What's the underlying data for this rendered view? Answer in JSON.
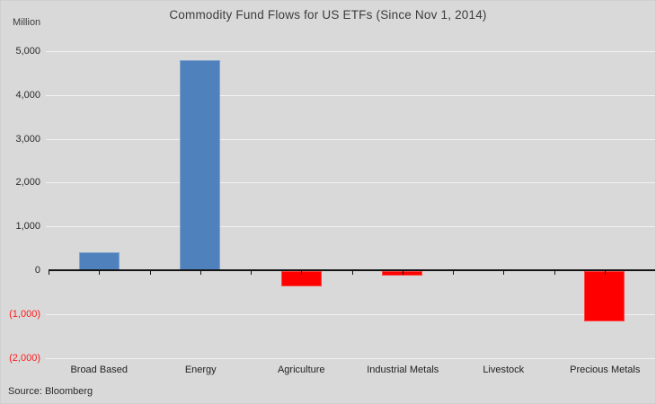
{
  "title": "Commodity Fund Flows for US ETFs (Since Nov 1, 2014)",
  "unit_label": "Million",
  "source_label": "Source: Bloomberg",
  "colors": {
    "background": "#d9d9d9",
    "positive_bar": "#4f81bd",
    "negative_bar": "#ff0000",
    "negative_tick_text": "#ff1a1a",
    "gridline": "#f2f2f2",
    "axis": "#141414",
    "text": "#2b2b2b"
  },
  "chart_data": {
    "type": "bar",
    "title": "Commodity Fund Flows for US ETFs (Since Nov 1, 2014)",
    "xlabel": "",
    "ylabel": "Million",
    "categories": [
      "Broad Based",
      "Energy",
      "Agriculture",
      "Industrial Metals",
      "Livestock",
      "Precious Metals"
    ],
    "values": [
      400,
      4800,
      -350,
      -100,
      0,
      -1150
    ],
    "ylim": [
      -2000,
      5000
    ],
    "ytick_interval": 1000,
    "yticks": [
      5000,
      4000,
      3000,
      2000,
      1000,
      0,
      -1000,
      -2000
    ],
    "ytick_labels": [
      "5,000",
      "4,000",
      "3,000",
      "2,000",
      "1,000",
      "0",
      "(1,000)",
      "(2,000)"
    ],
    "grid": true,
    "legend": false,
    "bar_color_rule": "blue for positive flows, red for negative flows",
    "source": "Source: Bloomberg"
  }
}
